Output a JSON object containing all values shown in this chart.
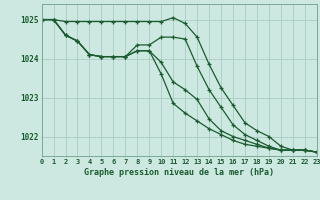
{
  "xlabel": "Graphe pression niveau de la mer (hPa)",
  "background_color": "#cce8e0",
  "grid_color": "#aaccC4",
  "line_color": "#1a5c30",
  "xlim": [
    0,
    23
  ],
  "ylim": [
    1021.5,
    1025.4
  ],
  "yticks": [
    1022,
    1023,
    1024,
    1025
  ],
  "xticks": [
    0,
    1,
    2,
    3,
    4,
    5,
    6,
    7,
    8,
    9,
    10,
    11,
    12,
    13,
    14,
    15,
    16,
    17,
    18,
    19,
    20,
    21,
    22,
    23
  ],
  "series": [
    [
      1025.0,
      1025.0,
      1024.95,
      1024.95,
      1024.95,
      1024.95,
      1024.95,
      1024.95,
      1024.95,
      1024.95,
      1024.95,
      1025.05,
      1024.9,
      1024.55,
      1023.85,
      1023.25,
      1022.8,
      1022.35,
      1022.15,
      1022.0,
      1021.75,
      1021.65,
      1021.65,
      1021.6
    ],
    [
      1025.0,
      1025.0,
      1024.6,
      1024.45,
      1024.1,
      1024.05,
      1024.05,
      1024.05,
      1024.35,
      1024.35,
      1024.55,
      1024.55,
      1024.5,
      1023.8,
      1023.2,
      1022.75,
      1022.3,
      1022.05,
      1021.9,
      1021.75,
      1021.65,
      1021.65,
      1021.65,
      1021.6
    ],
    [
      1025.0,
      1025.0,
      1024.6,
      1024.45,
      1024.1,
      1024.05,
      1024.05,
      1024.05,
      1024.2,
      1024.2,
      1023.9,
      1023.4,
      1023.2,
      1022.95,
      1022.45,
      1022.15,
      1022.0,
      1021.9,
      1021.8,
      1021.7,
      1021.65,
      1021.65,
      1021.65,
      1021.6
    ],
    [
      1025.0,
      1025.0,
      1024.6,
      1024.45,
      1024.1,
      1024.05,
      1024.05,
      1024.05,
      1024.2,
      1024.2,
      1023.6,
      1022.85,
      1022.6,
      1022.4,
      1022.2,
      1022.05,
      1021.9,
      1021.8,
      1021.75,
      1021.7,
      1021.65,
      1021.65,
      1021.65,
      1021.6
    ]
  ]
}
